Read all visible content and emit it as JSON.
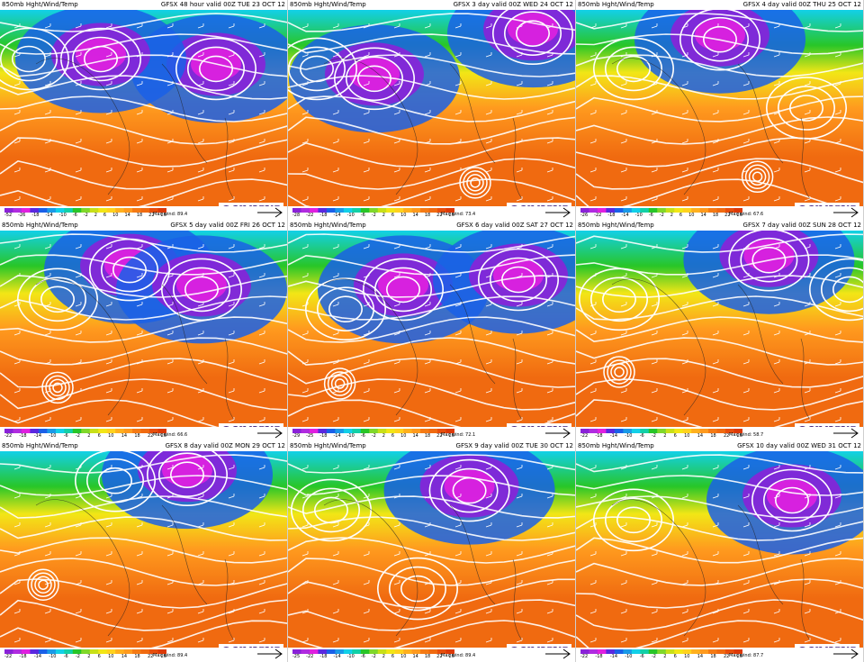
{
  "panels": [
    {
      "title_left": "850mb Hght/Wind/Temp",
      "title_right": "GFSX 48 hour valid 00Z TUE 23 OCT 12",
      "max_wind": "Max wind: 89.4",
      "lows": [
        [
          0.75,
          0.3
        ],
        [
          0.35,
          0.25
        ]
      ],
      "highs": [
        [
          0.1,
          0.25
        ]
      ],
      "typhoon": null,
      "ticks": [
        "-52",
        "-26",
        "-18",
        "-14",
        "-10",
        "-6",
        "-2",
        "2",
        "6",
        "10",
        "14",
        "18",
        "22",
        "26"
      ]
    },
    {
      "title_left": "850mb Hght/Wind/Temp",
      "title_right": "GFSX 3 day valid 00Z WED 24 OCT 12",
      "max_wind": "Max wind: 73.4",
      "lows": [
        [
          0.85,
          0.12
        ],
        [
          0.3,
          0.35
        ]
      ],
      "highs": [
        [
          0.1,
          0.3
        ]
      ],
      "typhoon": [
        0.65,
        0.88
      ],
      "ticks": [
        "-28",
        "-22",
        "-18",
        "-14",
        "-10",
        "-6",
        "-2",
        "2",
        "6",
        "10",
        "14",
        "18",
        "22",
        "26"
      ]
    },
    {
      "title_left": "850mb Hght/Wind/Temp",
      "title_right": "GFSX 4 day valid 00Z THU 25 OCT 12",
      "max_wind": "Max wind: 67.6",
      "lows": [
        [
          0.5,
          0.15
        ]
      ],
      "highs": [
        [
          0.2,
          0.3
        ],
        [
          0.8,
          0.5
        ]
      ],
      "typhoon": [
        0.63,
        0.85
      ],
      "ticks": [
        "-26",
        "-22",
        "-18",
        "-14",
        "-10",
        "-6",
        "-2",
        "2",
        "6",
        "10",
        "14",
        "18",
        "22",
        "26"
      ]
    },
    {
      "title_left": "850mb Hght/Wind/Temp",
      "title_right": "GFSX 5 day valid 00Z FRI 26 OCT 12",
      "max_wind": "Max wind: 66.6",
      "lows": [
        [
          0.45,
          0.2
        ],
        [
          0.7,
          0.3
        ]
      ],
      "highs": [
        [
          0.2,
          0.35
        ]
      ],
      "typhoon": [
        0.2,
        0.8
      ],
      "ticks": [
        "-22",
        "-18",
        "-14",
        "-10",
        "-6",
        "-2",
        "2",
        "6",
        "10",
        "14",
        "18",
        "22",
        "26"
      ]
    },
    {
      "title_left": "850mb Hght/Wind/Temp",
      "title_right": "GFSX 6 day valid 00Z SAT 27 OCT 12",
      "max_wind": "Max wind: 72.1",
      "lows": [
        [
          0.4,
          0.3
        ],
        [
          0.8,
          0.25
        ]
      ],
      "highs": [
        [
          0.2,
          0.4
        ]
      ],
      "typhoon": [
        0.18,
        0.78
      ],
      "ticks": [
        "-29",
        "-25",
        "-18",
        "-14",
        "-10",
        "-6",
        "-2",
        "2",
        "6",
        "10",
        "14",
        "18",
        "22",
        "26"
      ]
    },
    {
      "title_left": "850mb Hght/Wind/Temp",
      "title_right": "GFSX 7 day valid 00Z SUN 28 OCT 12",
      "max_wind": "Max wind: 58.7",
      "lows": [
        [
          0.67,
          0.15
        ]
      ],
      "highs": [
        [
          0.15,
          0.35
        ],
        [
          0.95,
          0.3
        ]
      ],
      "typhoon": [
        0.15,
        0.72
      ],
      "ticks": [
        "-22",
        "-18",
        "-14",
        "-10",
        "-6",
        "-2",
        "2",
        "6",
        "10",
        "14",
        "18",
        "22",
        "26"
      ]
    },
    {
      "title_left": "850mb Hght/Wind/Temp",
      "title_right": "GFSX 8 day valid 00Z MON 29 OCT 12",
      "max_wind": "Max wind: 89.4",
      "lows": [
        [
          0.65,
          0.12
        ]
      ],
      "highs": [
        [
          0.4,
          0.15
        ]
      ],
      "typhoon": [
        0.15,
        0.68
      ],
      "ticks": [
        "-22",
        "-18",
        "-14",
        "-10",
        "-6",
        "-2",
        "2",
        "6",
        "10",
        "14",
        "18",
        "22",
        "26"
      ]
    },
    {
      "title_left": "850mb Hght/Wind/Temp",
      "title_right": "GFSX 9 day valid 00Z TUE 30 OCT 12",
      "max_wind": "Max wind: 89.4",
      "lows": [
        [
          0.63,
          0.2
        ]
      ],
      "highs": [
        [
          0.15,
          0.3
        ],
        [
          0.45,
          0.7
        ]
      ],
      "typhoon": null,
      "ticks": [
        "-25",
        "-22",
        "-18",
        "-14",
        "-10",
        "-6",
        "-2",
        "2",
        "6",
        "10",
        "14",
        "18",
        "22",
        "26"
      ]
    },
    {
      "title_left": "850mb Hght/Wind/Temp",
      "title_right": "GFSX 10 day valid 00Z WED 31 OCT 12",
      "max_wind": "Max wind: 87.7",
      "lows": [
        [
          0.75,
          0.25
        ]
      ],
      "highs": [
        [
          0.2,
          0.35
        ]
      ],
      "typhoon": null,
      "ticks": [
        "-22",
        "-18",
        "-14",
        "-10",
        "-6",
        "-2",
        "2",
        "6",
        "10",
        "14",
        "18",
        "22",
        "26"
      ]
    }
  ],
  "branding": {
    "logo_text": "UNISYS",
    "logo_symbol": "©"
  },
  "colors": {
    "warm": "#f06a10",
    "orange": "#ff9a1e",
    "yellow": "#f2e616",
    "green": "#28c628",
    "cyan": "#12d0e8",
    "blue": "#1a60e8",
    "purple": "#8a22d8",
    "magenta": "#e020e0",
    "contour": "#ffffff",
    "brand": "#4a2c86"
  },
  "colorbar": [
    "#8a22d8",
    "#b02ce0",
    "#e020e0",
    "#5a28e0",
    "#1a60e8",
    "#1a9ae8",
    "#12d0e8",
    "#12d0a8",
    "#28c628",
    "#80d82a",
    "#c8e018",
    "#f2e616",
    "#ffd21e",
    "#ffb01e",
    "#ff9a1e",
    "#f57a14",
    "#f06a10",
    "#e84e0c",
    "#dc3a08"
  ]
}
